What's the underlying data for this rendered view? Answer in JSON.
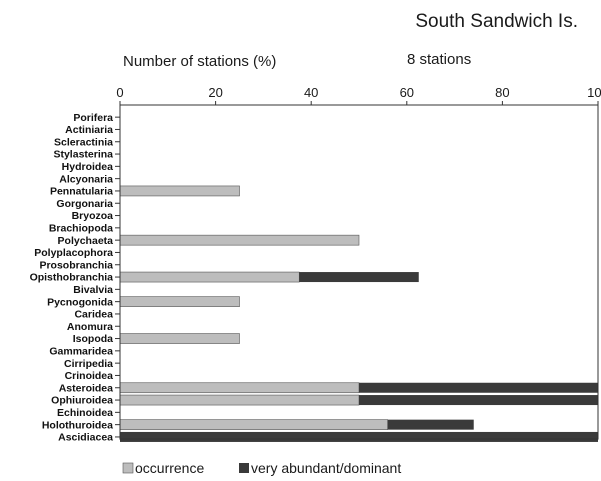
{
  "chart_data": {
    "type": "bar",
    "orientation": "horizontal",
    "stacked": true,
    "title": "South Sandwich Is.",
    "subtitle": "8 stations",
    "xlabel": "Number of stations (%)",
    "xlim": [
      0,
      100
    ],
    "xticks": [
      "0",
      "20",
      "40",
      "60",
      "80",
      "100"
    ],
    "grid": false,
    "legend_position": "bottom",
    "categories": [
      "Porifera",
      "Actiniaria",
      "Scleractinia",
      "Stylasterina",
      "Hydroidea",
      "Alcyonaria",
      "Pennatularia",
      "Gorgonaria",
      "Bryozoa",
      "Brachiopoda",
      "Polychaeta",
      "Polyplacophora",
      "Prosobranchia",
      "Opisthobranchia",
      "Bivalvia",
      "Pycnogonida",
      "Caridea",
      "Anomura",
      "Isopoda",
      "Gammaridea",
      "Cirripedia",
      "Crinoidea",
      "Asteroidea",
      "Ophiuroidea",
      "Echinoidea",
      "Holothuroidea",
      "Ascidiacea"
    ],
    "series": [
      {
        "name": "occurrence",
        "color": "#bdbdbd",
        "values": [
          0,
          0,
          0,
          0,
          0,
          0,
          25,
          0,
          0,
          0,
          50,
          0,
          0,
          37.5,
          0,
          25,
          0,
          0,
          25,
          0,
          0,
          0,
          50,
          50,
          0,
          56,
          0
        ]
      },
      {
        "name": "very abundant/dominant",
        "color": "#3a3a3a",
        "values": [
          0,
          0,
          0,
          0,
          0,
          0,
          0,
          0,
          0,
          0,
          0,
          0,
          0,
          25,
          0,
          0,
          0,
          0,
          0,
          0,
          0,
          0,
          50,
          50,
          0,
          18,
          100
        ]
      }
    ]
  }
}
